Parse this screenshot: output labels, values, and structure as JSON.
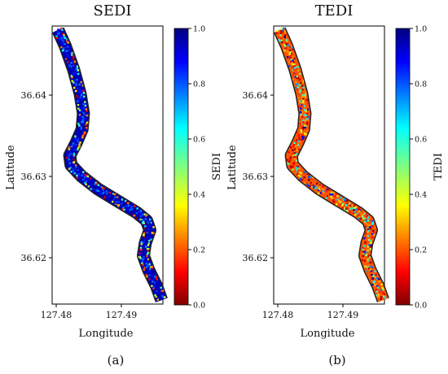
{
  "chart_data": [
    {
      "type": "heatmap",
      "title": "SEDI",
      "xlabel": "Longitude",
      "ylabel": "Latitude",
      "xticks": [
        "127.48",
        "127.49"
      ],
      "yticks": [
        "36.64",
        "36.63",
        "36.62"
      ],
      "xlim": [
        127.4795,
        127.4965
      ],
      "ylim": [
        36.6135,
        36.6485
      ],
      "colorbar": {
        "label": "SEDI",
        "min": 0.0,
        "max": 1.0,
        "colormap": "jet_r",
        "ticks": [
          "0.0",
          "0.2",
          "0.4",
          "0.6",
          "0.8",
          "1.0"
        ]
      },
      "dominant_value": 0.95,
      "caption": "(a)"
    },
    {
      "type": "heatmap",
      "title": "TEDI",
      "xlabel": "Longitude",
      "ylabel": "Latitude",
      "xticks": [
        "127.48",
        "127.49"
      ],
      "yticks": [
        "36.64",
        "36.63",
        "36.62"
      ],
      "xlim": [
        127.4795,
        127.4965
      ],
      "ylim": [
        36.6135,
        36.6485
      ],
      "colorbar": {
        "label": "TEDI",
        "min": 0.0,
        "max": 1.0,
        "colormap": "jet_r",
        "ticks": [
          "0.0",
          "0.2",
          "0.4",
          "0.6",
          "0.8",
          "1.0"
        ]
      },
      "dominant_value": 0.2,
      "caption": "(b)"
    }
  ],
  "river_path": [
    [
      127.4804,
      36.648
    ],
    [
      127.4815,
      36.646
    ],
    [
      127.4828,
      36.643
    ],
    [
      127.4838,
      36.64
    ],
    [
      127.4843,
      36.6375
    ],
    [
      127.4841,
      36.6355
    ],
    [
      127.4832,
      36.6338
    ],
    [
      127.4822,
      36.6322
    ],
    [
      127.4824,
      36.631
    ],
    [
      127.484,
      36.6296
    ],
    [
      127.4865,
      36.628
    ],
    [
      127.4895,
      36.6265
    ],
    [
      127.4925,
      36.625
    ],
    [
      127.494,
      36.624
    ],
    [
      127.4945,
      36.6228
    ],
    [
      127.4938,
      36.6212
    ],
    [
      127.4935,
      36.6196
    ],
    [
      127.4943,
      36.6178
    ],
    [
      127.4955,
      36.6158
    ],
    [
      127.4963,
      36.614
    ]
  ]
}
